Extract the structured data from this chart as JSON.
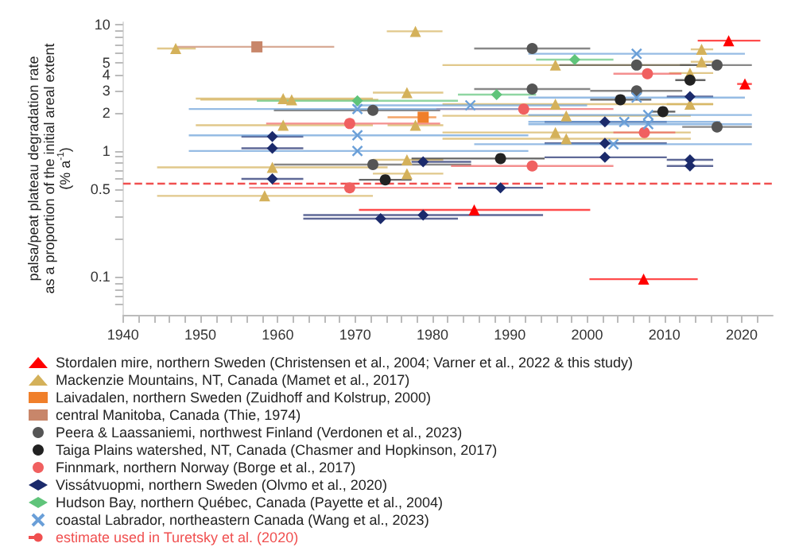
{
  "chart_data": {
    "type": "scatter",
    "ylabel": "palsa/peat plateau degradation rate\nas a proportion of the initial areal extent\n(% a$^{-1}$)",
    "log": "y",
    "grid": false,
    "legend": "bottom",
    "xlim": [
      1940,
      2024
    ],
    "xticks": [
      1940,
      {
        "value": 1942,
        "label": null
      },
      {
        "value": 1944,
        "label": null
      },
      {
        "value": 1946,
        "label": null
      },
      {
        "value": 1948,
        "label": null
      },
      1950,
      {
        "value": 1952,
        "label": null
      },
      {
        "value": 1954,
        "label": null
      },
      {
        "value": 1956,
        "label": null
      },
      {
        "value": 1958,
        "label": null
      },
      1960,
      {
        "value": 1962,
        "label": null
      },
      {
        "value": 1964,
        "label": null
      },
      {
        "value": 1966,
        "label": null
      },
      {
        "value": 1968,
        "label": null
      },
      1970,
      {
        "value": 1972,
        "label": null
      },
      {
        "value": 1974,
        "label": null
      },
      {
        "value": 1976,
        "label": null
      },
      {
        "value": 1978,
        "label": null
      },
      1980,
      {
        "value": 1982,
        "label": null
      },
      {
        "value": 1984,
        "label": null
      },
      {
        "value": 1986,
        "label": null
      },
      {
        "value": 1988,
        "label": null
      },
      1990,
      {
        "value": 1992,
        "label": null
      },
      {
        "value": 1994,
        "label": null
      },
      {
        "value": 1996,
        "label": null
      },
      {
        "value": 1998,
        "label": null
      },
      2000,
      {
        "value": 2002,
        "label": null
      },
      {
        "value": 2004,
        "label": null
      },
      {
        "value": 2006,
        "label": null
      },
      {
        "value": 2008,
        "label": null
      },
      2010,
      {
        "value": 2012,
        "label": null
      },
      {
        "value": 2014,
        "label": null
      },
      {
        "value": 2016,
        "label": null
      },
      {
        "value": 2018,
        "label": null
      },
      2020,
      {
        "value": 2022,
        "label": null
      }
    ],
    "ylim": [
      0.05,
      10.5
    ],
    "yticks": [
      {
        "value": 0.06,
        "label": null
      },
      {
        "value": 0.07,
        "label": null
      },
      {
        "value": 0.08,
        "label": null
      },
      {
        "value": 0.09,
        "label": null
      },
      0.1,
      {
        "value": 0.2,
        "label": null
      },
      {
        "value": 0.3,
        "label": null
      },
      {
        "value": 0.4,
        "label": null
      },
      0.5,
      {
        "value": 0.6,
        "label": null
      },
      {
        "value": 0.7,
        "label": null
      },
      {
        "value": 0.8,
        "label": null
      },
      {
        "value": 0.9,
        "label": null
      },
      1,
      2,
      3,
      4,
      5,
      {
        "value": 6,
        "label": null
      },
      {
        "value": 7,
        "label": null
      },
      {
        "value": 8,
        "label": null
      },
      {
        "value": 9,
        "label": null
      },
      10
    ],
    "series": [
      {
        "name": "Stordalen mire, northern Sweden (Christensen et al., 2004; Varner et al., 2022 & this study)",
        "color": "#ff0000",
        "marker": "triangle",
        "x": [
          2018.3,
          2020.4,
          1985.4,
          2007.3
        ],
        "values": [
          7.5,
          3.4,
          0.34,
          0.096
        ],
        "xerrors": [
          [
            2014.3,
            2022.4
          ],
          [
            2019.4,
            2021.3
          ],
          [
            1970.5,
            2000.4
          ],
          [
            2000.3,
            2014.3
          ]
        ]
      },
      {
        "name": "Mackenzie Mountains, NT, Canada (Mamet et al., 2017)",
        "color": "#d4b15a",
        "marker": "triangle",
        "x": [
          1977.8,
          1946.8,
          1960.7,
          1961.8,
          1976.7,
          1977.8,
          1960.7,
          1976.7,
          1959.3,
          1976.7,
          1958.3,
          2014.8,
          1995.9,
          2014.8,
          2013.3,
          1995.9,
          2013.3,
          1997.3,
          1995.9,
          1997.3
        ],
        "values": [
          8.9,
          6.5,
          2.6,
          2.55,
          2.9,
          1.6,
          1.6,
          0.85,
          0.74,
          0.66,
          0.44,
          6.4,
          4.8,
          5.1,
          4.15,
          2.35,
          2.35,
          1.9,
          1.4,
          1.25
        ],
        "xerrors": [
          [
            1974.1,
            1981.3
          ],
          [
            1944.4,
            1949.4
          ],
          [
            1949.4,
            1972.3
          ],
          [
            1950.0,
            1973.0
          ],
          [
            1972.3,
            1981.4
          ],
          [
            1974.2,
            1981.4
          ],
          [
            1949.4,
            1972.3
          ],
          [
            1972.3,
            1981.4
          ],
          [
            1944.4,
            1974.2
          ],
          [
            1972.3,
            1981.4
          ],
          [
            1944.4,
            1972.3
          ],
          [
            2013.4,
            2016.3
          ],
          [
            1981.3,
            2013.4
          ],
          [
            2013.4,
            2016.3
          ],
          [
            2010.6,
            2016.3
          ],
          [
            1981.3,
            2016.3
          ],
          [
            2010.3,
            2016.3
          ],
          [
            1981.3,
            2013.4
          ],
          [
            1981.3,
            2013.4
          ],
          [
            1981.3,
            2013.4
          ]
        ]
      },
      {
        "name": "Laivadalen, northern Sweden (Zuidhoff and Kolstrup, 2000)",
        "color": "#f07f2a",
        "marker": "square",
        "x": [
          1978.8
        ],
        "values": [
          1.85
        ],
        "xerrors": [
          [
            1974.2,
            1980.5
          ]
        ]
      },
      {
        "name": "central Manitoba, Canada (Thie, 1974)",
        "color": "#c8866a",
        "marker": "square",
        "x": [
          1957.3
        ],
        "values": [
          6.7
        ],
        "xerrors": [
          [
            1946.6,
            1967.3
          ]
        ]
      },
      {
        "name": "Peera & Laassaniemi, northwest Finland (Verdonen et al., 2023)",
        "color": "#555555",
        "marker": "circle",
        "x": [
          1972.3,
          1972.3,
          1992.9,
          2006.4,
          2016.8,
          1992.9,
          2006.4,
          2016.8
        ],
        "values": [
          2.1,
          0.78,
          6.5,
          4.8,
          4.8,
          3.1,
          3.0,
          1.55
        ],
        "xerrors": [
          [
            1959.5,
            1981.0
          ],
          [
            1959.5,
            1985.0
          ],
          [
            1985.4,
            2000.4
          ],
          [
            1996.4,
            2016.0
          ],
          [
            2012.0,
            2021.3
          ],
          [
            1985.4,
            2000.4
          ],
          [
            2000.4,
            2012.3
          ],
          [
            2012.3,
            2021.3
          ]
        ]
      },
      {
        "name": "Taiga Plains watershed, NT, Canada (Chasmer and Hopkinson, 2017)",
        "color": "#222222",
        "marker": "circle",
        "x": [
          1973.9,
          2013.3,
          2004.3,
          2009.8,
          1988.8
        ],
        "values": [
          0.59,
          3.65,
          2.55,
          2.05,
          0.87
        ],
        "xerrors": [
          [
            1970.5,
            1977.3
          ],
          [
            2011.4,
            2015.3
          ],
          [
            2000.4,
            2008.3
          ],
          [
            2008.3,
            2011.4
          ],
          [
            1977.3,
            1994.5
          ]
        ]
      },
      {
        "name": "Finnmark, northern Norway (Borge et al., 2017)",
        "color": "#f06060",
        "marker": "circle",
        "x": [
          1969.3,
          1969.3,
          2007.8,
          1991.8,
          2007.4,
          1992.9
        ],
        "values": [
          1.65,
          0.51,
          4.1,
          2.15,
          1.4,
          0.76
        ],
        "xerrors": [
          [
            1958.5,
            1981.0
          ],
          [
            1956.3,
            1982.4
          ],
          [
            2003.4,
            2012.2
          ],
          [
            1980.5,
            2003.4
          ],
          [
            2003.4,
            2011.4
          ],
          [
            1982.4,
            2003.4
          ]
        ]
      },
      {
        "name": "Vissátvuopmi, northern Sweden (Olvmo et al., 2020)",
        "color": "#1b2a6b",
        "marker": "diamond",
        "x": [
          1959.3,
          1959.3,
          1959.3,
          1978.8,
          1978.8,
          1973.3,
          2013.3,
          2002.3,
          2002.3,
          2002.3,
          2013.3,
          2013.3,
          1988.8
        ],
        "values": [
          1.3,
          1.05,
          0.6,
          0.82,
          0.31,
          0.29,
          2.7,
          1.7,
          1.15,
          0.89,
          0.85,
          0.76,
          0.51
        ],
        "xerrors": [
          [
            1955.3,
            1963.3
          ],
          [
            1955.3,
            1963.3
          ],
          [
            1955.3,
            1963.3
          ],
          [
            1977.3,
            1985.0
          ],
          [
            1963.3,
            1994.3
          ],
          [
            1963.3,
            1983.3
          ],
          [
            2010.3,
            2016.3
          ],
          [
            1994.5,
            2010.3
          ],
          [
            1994.5,
            2010.3
          ],
          [
            1994.5,
            2010.3
          ],
          [
            2010.3,
            2016.3
          ],
          [
            2010.3,
            2016.3
          ],
          [
            1983.3,
            1994.3
          ]
        ]
      },
      {
        "name": "Hudson Bay, northern Québec, Canada (Payette et al., 2004)",
        "color": "#5fc47a",
        "marker": "diamond",
        "x": [
          1970.3,
          1998.4,
          1988.3
        ],
        "values": [
          2.5,
          5.3,
          2.8
        ],
        "xerrors": [
          [
            1957.3,
            1983.3
          ],
          [
            1993.4,
            2003.4
          ],
          [
            1983.3,
            1993.4
          ]
        ]
      },
      {
        "name": "coastal Labrador, northeastern Canada (Wang et al., 2023)",
        "color": "#6a9fd8",
        "marker": "cross",
        "x": [
          1970.3,
          1970.3,
          1970.3,
          2006.4,
          2006.4,
          1984.9,
          2007.9,
          2004.8,
          2007.9,
          2003.4
        ],
        "values": [
          2.15,
          1.33,
          1.0,
          5.9,
          2.65,
          2.3,
          1.93,
          1.7,
          1.63,
          1.13
        ],
        "xerrors": [
          [
            1948.5,
            1992.4
          ],
          [
            1948.5,
            1992.4
          ],
          [
            1948.5,
            1992.4
          ],
          [
            1992.4,
            2020.4
          ],
          [
            1992.4,
            2020.4
          ],
          [
            1970.0,
            2000.0
          ],
          [
            1992.4,
            2021.3
          ],
          [
            1992.4,
            2017.2
          ],
          [
            1992.4,
            2021.3
          ],
          [
            1985.4,
            2021.3
          ]
        ]
      },
      {
        "name": "estimate used in Turetsky et al. (2020)",
        "type": "line",
        "color": "#f05050",
        "line_style": "dashed",
        "marker": "none",
        "x": [
          1940,
          2024
        ],
        "values": [
          0.55,
          0.55
        ]
      }
    ]
  }
}
